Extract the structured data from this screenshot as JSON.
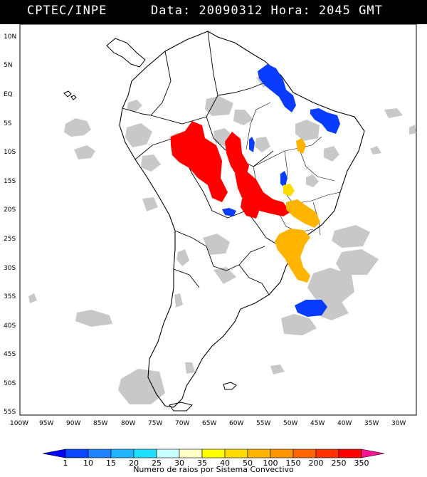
{
  "header": {
    "source": "CPTEC/INPE",
    "datetime": "Data: 20090312 Hora: 2045 GMT"
  },
  "map": {
    "lat_labels": [
      "10N",
      "5N",
      "EQ",
      "5S",
      "10S",
      "15S",
      "20S",
      "25S",
      "30S",
      "35S",
      "40S",
      "45S",
      "50S",
      "55S"
    ],
    "lon_labels": [
      "100W",
      "95W",
      "90W",
      "85W",
      "80W",
      "75W",
      "70W",
      "65W",
      "60W",
      "55W",
      "50W",
      "45W",
      "40W",
      "35W",
      "30W"
    ],
    "colors": {
      "satellite_cloud": "#c8c8c8",
      "coast": "#000000",
      "storm_red": "#ff0000",
      "storm_blue": "#0a3cff",
      "storm_orange": "#ffb400",
      "storm_yellow": "#ffdc00"
    }
  },
  "colorbar": {
    "levels": [
      "1",
      "10",
      "15",
      "20",
      "25",
      "30",
      "35",
      "40",
      "50",
      "100",
      "150",
      "200",
      "250",
      "350"
    ],
    "colors": [
      "#0000ff",
      "#0a46ff",
      "#1e82ff",
      "#20b4ff",
      "#20e0ff",
      "#c8ffff",
      "#ffffc8",
      "#ffff00",
      "#ffdc00",
      "#ffb400",
      "#ff9600",
      "#ff6400",
      "#ff3200",
      "#ff0000",
      "#ff1493"
    ],
    "title": "Numero de raios por Sistema Convectivo"
  }
}
